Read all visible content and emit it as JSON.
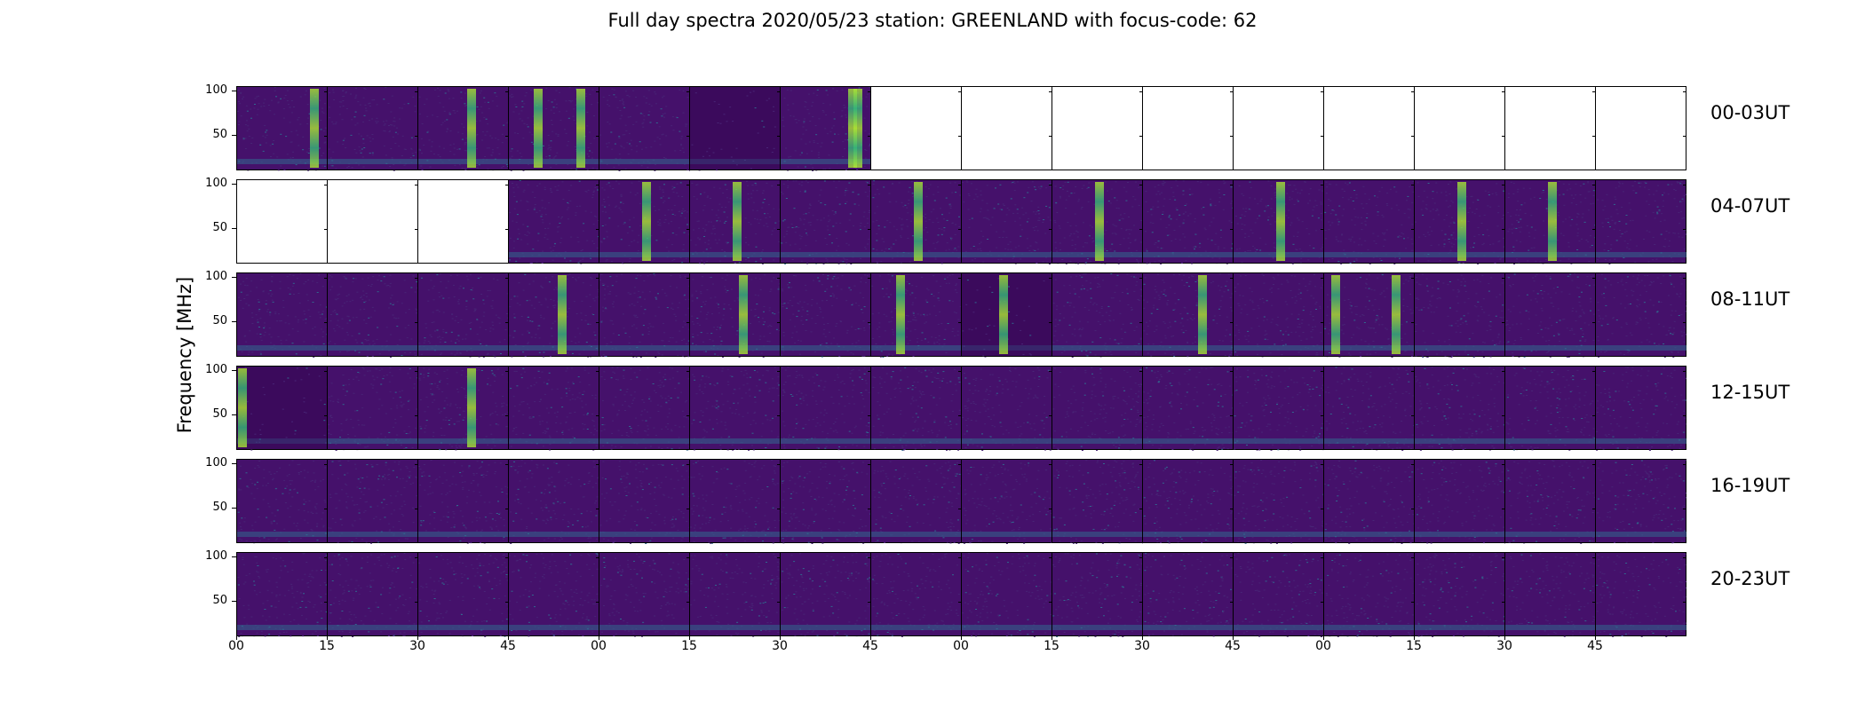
{
  "title": "Full day spectra 2020/05/23 station: GREENLAND with focus-code: 62",
  "colors": {
    "empty": "#ffffff",
    "background_spectrum": "#45116b",
    "quiet_dark": "#3b0a5c",
    "burst_bright": "#aee532",
    "burst_mid": "#35b779",
    "low_band": "#31688e",
    "frame": "#000000"
  },
  "chart_data": {
    "type": "heatmap",
    "title": "Full day spectra 2020/05/23 station: GREENLAND with focus-code: 62",
    "ylabel": "Frequency [MHz]",
    "yticks": [
      "100",
      "50"
    ],
    "ylim": [
      10,
      105
    ],
    "xticks": [
      "00",
      "15",
      "30",
      "45",
      "00",
      "15",
      "30",
      "45",
      "00",
      "15",
      "30",
      "45",
      "00",
      "15",
      "30",
      "45"
    ],
    "row_labels": [
      "00-03UT",
      "04-07UT",
      "08-11UT",
      "12-15UT",
      "16-19UT",
      "20-23UT"
    ],
    "panels_per_row": 16,
    "panel_minutes": 15,
    "grid": [
      [
        "data",
        "data",
        "data",
        "data",
        "data",
        "dark",
        "data",
        "empty",
        "empty",
        "empty",
        "empty",
        "empty",
        "empty",
        "empty",
        "empty",
        "empty"
      ],
      [
        "empty",
        "empty",
        "empty",
        "data",
        "data",
        "data",
        "data",
        "data",
        "data",
        "data",
        "data",
        "data",
        "data",
        "data",
        "data",
        "data"
      ],
      [
        "data",
        "data",
        "data",
        "data",
        "data",
        "data",
        "data",
        "data",
        "dark",
        "data",
        "data",
        "data",
        "data",
        "data",
        "data",
        "data"
      ],
      [
        "dark",
        "data",
        "data",
        "data",
        "data",
        "data",
        "data",
        "data",
        "data",
        "data",
        "data",
        "data",
        "data",
        "data",
        "data",
        "data"
      ],
      [
        "data",
        "data",
        "data",
        "data",
        "data",
        "data",
        "data",
        "data",
        "data",
        "data",
        "data",
        "data",
        "data",
        "data",
        "data",
        "data"
      ],
      [
        "data",
        "data",
        "data",
        "data",
        "data",
        "data",
        "data",
        "data",
        "data",
        "data",
        "data",
        "data",
        "data",
        "data",
        "data",
        "data"
      ]
    ],
    "burst_minutes": [
      [
        13,
        39,
        50,
        57,
        102,
        103
      ],
      [
        68,
        83,
        113,
        143,
        173,
        203,
        218
      ],
      [
        54,
        84,
        110,
        127,
        160,
        182,
        192
      ],
      [
        1,
        39
      ],
      [],
      []
    ]
  }
}
